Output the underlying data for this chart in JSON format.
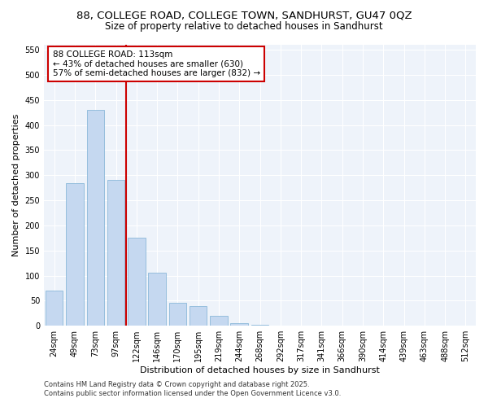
{
  "title_line1": "88, COLLEGE ROAD, COLLEGE TOWN, SANDHURST, GU47 0QZ",
  "title_line2": "Size of property relative to detached houses in Sandhurst",
  "xlabel": "Distribution of detached houses by size in Sandhurst",
  "ylabel": "Number of detached properties",
  "categories": [
    "24sqm",
    "49sqm",
    "73sqm",
    "97sqm",
    "122sqm",
    "146sqm",
    "170sqm",
    "195sqm",
    "219sqm",
    "244sqm",
    "268sqm",
    "292sqm",
    "317sqm",
    "341sqm",
    "366sqm",
    "390sqm",
    "414sqm",
    "439sqm",
    "463sqm",
    "488sqm",
    "512sqm"
  ],
  "values": [
    70,
    285,
    430,
    290,
    175,
    105,
    45,
    40,
    20,
    5,
    2,
    0,
    0,
    0,
    0,
    0,
    0,
    0,
    0,
    0,
    0
  ],
  "bar_color": "#c5d8f0",
  "bar_edge_color": "#7bafd4",
  "vline_x": 3,
  "annotation_text_line1": "88 COLLEGE ROAD: 113sqm",
  "annotation_text_line2": "← 43% of detached houses are smaller (630)",
  "annotation_text_line3": "57% of semi-detached houses are larger (832) →",
  "annotation_box_color": "#cc0000",
  "ylim": [
    0,
    560
  ],
  "yticks": [
    0,
    50,
    100,
    150,
    200,
    250,
    300,
    350,
    400,
    450,
    500,
    550
  ],
  "footer_line1": "Contains HM Land Registry data © Crown copyright and database right 2025.",
  "footer_line2": "Contains public sector information licensed under the Open Government Licence v3.0.",
  "background_color": "#ffffff",
  "plot_bg_color": "#eef3fa",
  "grid_color": "#ffffff",
  "title_fontsize": 9.5,
  "subtitle_fontsize": 8.5,
  "axis_label_fontsize": 8,
  "tick_fontsize": 7,
  "footer_fontsize": 6
}
